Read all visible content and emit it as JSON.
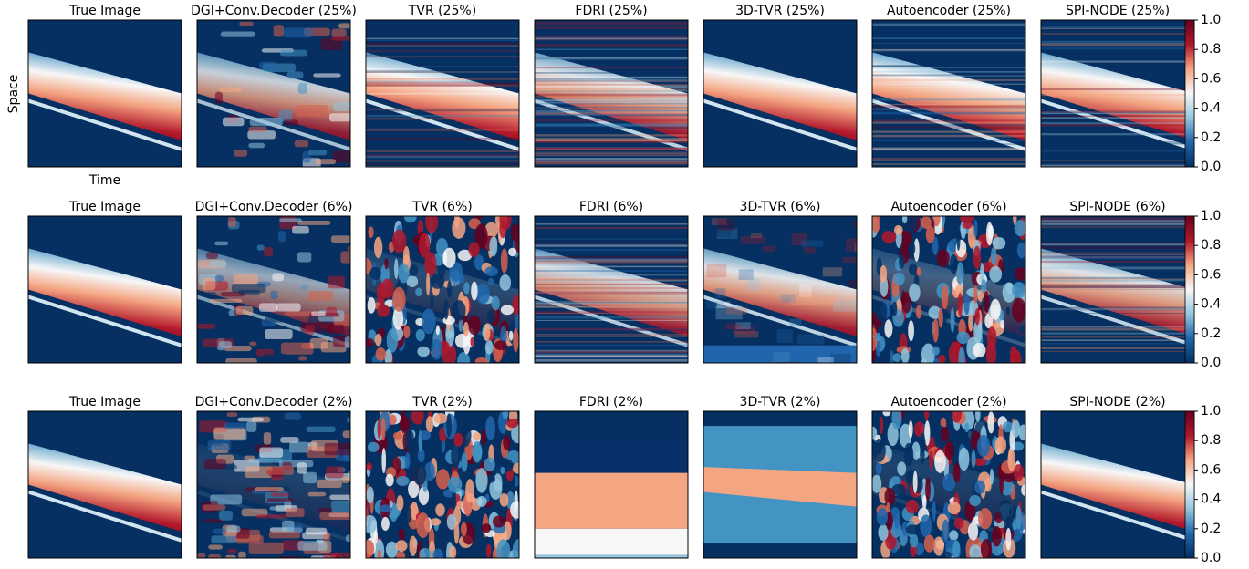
{
  "figure": {
    "y_label": "Space",
    "x_label": "Time",
    "rows": [
      {
        "titles": [
          "True Image",
          "DGI+Conv.Decoder (25%)",
          "TVR (25%)",
          "FDRI (25%)",
          "3D-TVR (25%)",
          "Autoencoder (25%)",
          "SPI-NODE (25%)"
        ],
        "colorbar": {
          "ticks": [
            {
              "value": 0,
              "label": "0.0"
            },
            {
              "value": 0.2,
              "label": "0.2"
            },
            {
              "value": 0.4,
              "label": "0.4"
            },
            {
              "value": 0.6,
              "label": "0.6"
            },
            {
              "value": 0.8,
              "label": "0.8"
            },
            {
              "value": 1,
              "label": "1.0"
            }
          ]
        }
      },
      {
        "titles": [
          "True Image",
          "DGI+Conv.Decoder (6%)",
          "TVR (6%)",
          "FDRI (6%)",
          "3D-TVR (6%)",
          "Autoencoder (6%)",
          "SPI-NODE (6%)"
        ],
        "colorbar": {
          "ticks": [
            {
              "value": 0,
              "label": "0.0"
            },
            {
              "value": 0.2,
              "label": "0.2"
            },
            {
              "value": 0.4,
              "label": "0.4"
            },
            {
              "value": 0.6,
              "label": "0.6"
            },
            {
              "value": 0.8,
              "label": "0.8"
            },
            {
              "value": 1,
              "label": "1.0"
            }
          ]
        }
      },
      {
        "titles": [
          "True Image",
          "DGI+Conv.Decoder (2%)",
          "TVR (2%)",
          "FDRI (2%)",
          "3D-TVR (2%)",
          "Autoencoder (2%)",
          "SPI-NODE (2%)"
        ],
        "colorbar": {
          "ticks": [
            {
              "value": 0,
              "label": "0.0"
            },
            {
              "value": 0.2,
              "label": "0.2"
            },
            {
              "value": 0.4,
              "label": "0.4"
            },
            {
              "value": 0.6,
              "label": "0.6"
            },
            {
              "value": 0.8,
              "label": "0.8"
            },
            {
              "value": 1,
              "label": "1.0"
            }
          ]
        }
      }
    ]
  }
}
